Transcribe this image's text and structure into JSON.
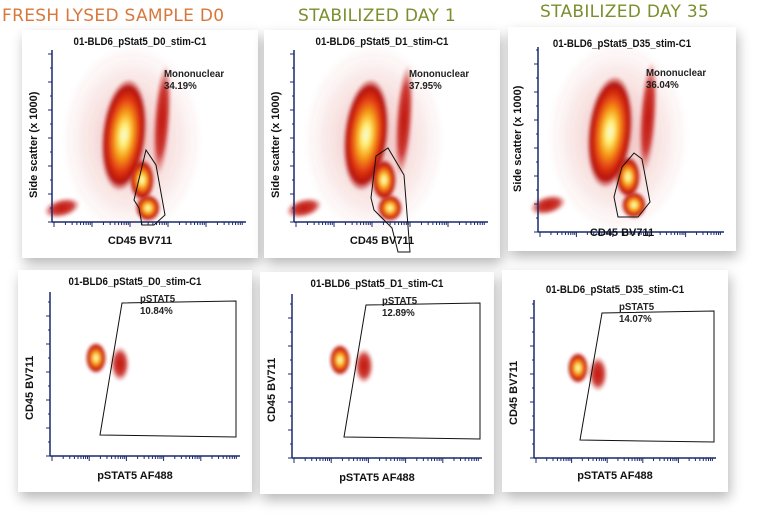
{
  "headings": [
    "FRESH LYSED SAMPLE D0",
    "STABILIZED DAY 1",
    "STABILIZED DAY 35"
  ],
  "colors": {
    "heading_d0": "#d9773a",
    "heading_stabilized": "#7a8f2c",
    "gate_line": "#111111",
    "axis": "#1a2a6c"
  },
  "chart_data": [
    {
      "type": "scatter",
      "subtype": "density-dot-plot",
      "title": "01-BLD6_pStat5_D0_stim-C1",
      "xlabel": "CD45 BV711",
      "ylabel": "Side scatter (x 1000)",
      "gate": {
        "name": "Mononuclear",
        "percent": "34.19%"
      }
    },
    {
      "type": "scatter",
      "subtype": "density-dot-plot",
      "title": "01-BLD6_pStat5_D1_stim-C1",
      "xlabel": "CD45 BV711",
      "ylabel": "Side scatter (x 1000)",
      "gate": {
        "name": "Mononuclear",
        "percent": "37.95%"
      }
    },
    {
      "type": "scatter",
      "subtype": "density-dot-plot",
      "title": "01-BLD6_pStat5_D35_stim-C1",
      "xlabel": "CD45 BV711",
      "ylabel": "Side scatter (x 1000)",
      "gate": {
        "name": "Mononuclear",
        "percent": "36.04%"
      }
    },
    {
      "type": "scatter",
      "subtype": "density-dot-plot",
      "title": "01-BLD6_pStat5_D0_stim-C1",
      "xlabel": "pSTAT5 AF488",
      "ylabel": "CD45 BV711",
      "gate": {
        "name": "pSTAT5",
        "percent": "10.84%"
      }
    },
    {
      "type": "scatter",
      "subtype": "density-dot-plot",
      "title": "01-BLD6_pStat5_D1_stim-C1",
      "xlabel": "pSTAT5 AF488",
      "ylabel": "CD45 BV711",
      "gate": {
        "name": "pSTAT5",
        "percent": "12.89%"
      }
    },
    {
      "type": "scatter",
      "subtype": "density-dot-plot",
      "title": "01-BLD6_pStat5_D35_stim-C1",
      "xlabel": "pSTAT5 AF488",
      "ylabel": "CD45 BV711",
      "gate": {
        "name": "pSTAT5",
        "percent": "14.07%"
      }
    }
  ]
}
